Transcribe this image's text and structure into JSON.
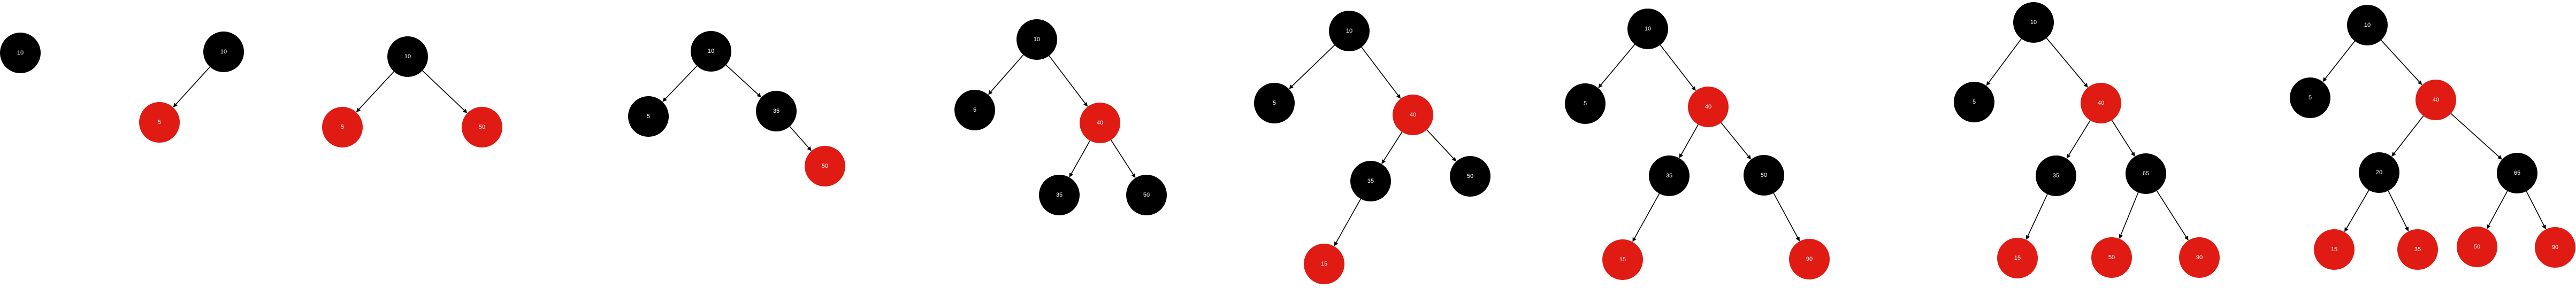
{
  "colors": {
    "black_node": "#000000",
    "red_node": "#e01b14",
    "label_on_black": "#ffffff",
    "label_on_red": "#ffffff",
    "edge": "#000000"
  },
  "trees": [
    {
      "nodes": [
        {
          "id": "a",
          "label": "10",
          "color": "black"
        }
      ],
      "edges": []
    },
    {
      "nodes": [
        {
          "id": "a",
          "label": "10",
          "color": "black"
        },
        {
          "id": "b",
          "label": "5",
          "color": "red"
        }
      ],
      "edges": [
        [
          "a",
          "b"
        ]
      ]
    },
    {
      "nodes": [
        {
          "id": "a",
          "label": "10",
          "color": "black"
        },
        {
          "id": "b",
          "label": "5",
          "color": "red"
        },
        {
          "id": "c",
          "label": "50",
          "color": "red"
        }
      ],
      "edges": [
        [
          "a",
          "b"
        ],
        [
          "a",
          "c"
        ]
      ]
    },
    {
      "nodes": [
        {
          "id": "a",
          "label": "10",
          "color": "black"
        },
        {
          "id": "b",
          "label": "5",
          "color": "black"
        },
        {
          "id": "c",
          "label": "35",
          "color": "black"
        },
        {
          "id": "d",
          "label": "50",
          "color": "red"
        }
      ],
      "edges": [
        [
          "a",
          "b"
        ],
        [
          "a",
          "c"
        ],
        [
          "c",
          "d"
        ]
      ]
    },
    {
      "nodes": [
        {
          "id": "a",
          "label": "10",
          "color": "black"
        },
        {
          "id": "b",
          "label": "5",
          "color": "black"
        },
        {
          "id": "c",
          "label": "40",
          "color": "red"
        },
        {
          "id": "d",
          "label": "35",
          "color": "black"
        },
        {
          "id": "e",
          "label": "50",
          "color": "black"
        }
      ],
      "edges": [
        [
          "a",
          "b"
        ],
        [
          "a",
          "c"
        ],
        [
          "c",
          "d"
        ],
        [
          "c",
          "e"
        ]
      ]
    },
    {
      "nodes": [
        {
          "id": "a",
          "label": "10",
          "color": "black"
        },
        {
          "id": "b",
          "label": "5",
          "color": "black"
        },
        {
          "id": "c",
          "label": "40",
          "color": "red"
        },
        {
          "id": "d",
          "label": "35",
          "color": "black"
        },
        {
          "id": "e",
          "label": "50",
          "color": "black"
        },
        {
          "id": "f",
          "label": "15",
          "color": "red"
        }
      ],
      "edges": [
        [
          "a",
          "b"
        ],
        [
          "a",
          "c"
        ],
        [
          "c",
          "d"
        ],
        [
          "c",
          "e"
        ],
        [
          "d",
          "f"
        ]
      ]
    },
    {
      "nodes": [
        {
          "id": "a",
          "label": "10",
          "color": "black"
        },
        {
          "id": "b",
          "label": "5",
          "color": "black"
        },
        {
          "id": "c",
          "label": "40",
          "color": "red"
        },
        {
          "id": "d",
          "label": "35",
          "color": "black"
        },
        {
          "id": "e",
          "label": "50",
          "color": "black"
        },
        {
          "id": "f",
          "label": "15",
          "color": "red"
        },
        {
          "id": "g",
          "label": "90",
          "color": "red"
        }
      ],
      "edges": [
        [
          "a",
          "b"
        ],
        [
          "a",
          "c"
        ],
        [
          "c",
          "d"
        ],
        [
          "c",
          "e"
        ],
        [
          "d",
          "f"
        ],
        [
          "e",
          "g"
        ]
      ]
    },
    {
      "nodes": [
        {
          "id": "a",
          "label": "10",
          "color": "black"
        },
        {
          "id": "b",
          "label": "5",
          "color": "black"
        },
        {
          "id": "c",
          "label": "40",
          "color": "red"
        },
        {
          "id": "d",
          "label": "35",
          "color": "black"
        },
        {
          "id": "e",
          "label": "65",
          "color": "black"
        },
        {
          "id": "f",
          "label": "15",
          "color": "red"
        },
        {
          "id": "g",
          "label": "50",
          "color": "red"
        },
        {
          "id": "h",
          "label": "90",
          "color": "red"
        }
      ],
      "edges": [
        [
          "a",
          "b"
        ],
        [
          "a",
          "c"
        ],
        [
          "c",
          "d"
        ],
        [
          "c",
          "e"
        ],
        [
          "d",
          "f"
        ],
        [
          "e",
          "g"
        ],
        [
          "e",
          "h"
        ]
      ]
    },
    {
      "nodes": [
        {
          "id": "a",
          "label": "10",
          "color": "black"
        },
        {
          "id": "b",
          "label": "5",
          "color": "black"
        },
        {
          "id": "c",
          "label": "40",
          "color": "red"
        },
        {
          "id": "d",
          "label": "20",
          "color": "black"
        },
        {
          "id": "e",
          "label": "65",
          "color": "black"
        },
        {
          "id": "f",
          "label": "15",
          "color": "red"
        },
        {
          "id": "g",
          "label": "35",
          "color": "red"
        },
        {
          "id": "h",
          "label": "50",
          "color": "red"
        },
        {
          "id": "i",
          "label": "90",
          "color": "red"
        }
      ],
      "edges": [
        [
          "a",
          "b"
        ],
        [
          "a",
          "c"
        ],
        [
          "c",
          "d"
        ],
        [
          "c",
          "e"
        ],
        [
          "d",
          "f"
        ],
        [
          "d",
          "g"
        ],
        [
          "e",
          "h"
        ],
        [
          "e",
          "i"
        ]
      ]
    }
  ]
}
